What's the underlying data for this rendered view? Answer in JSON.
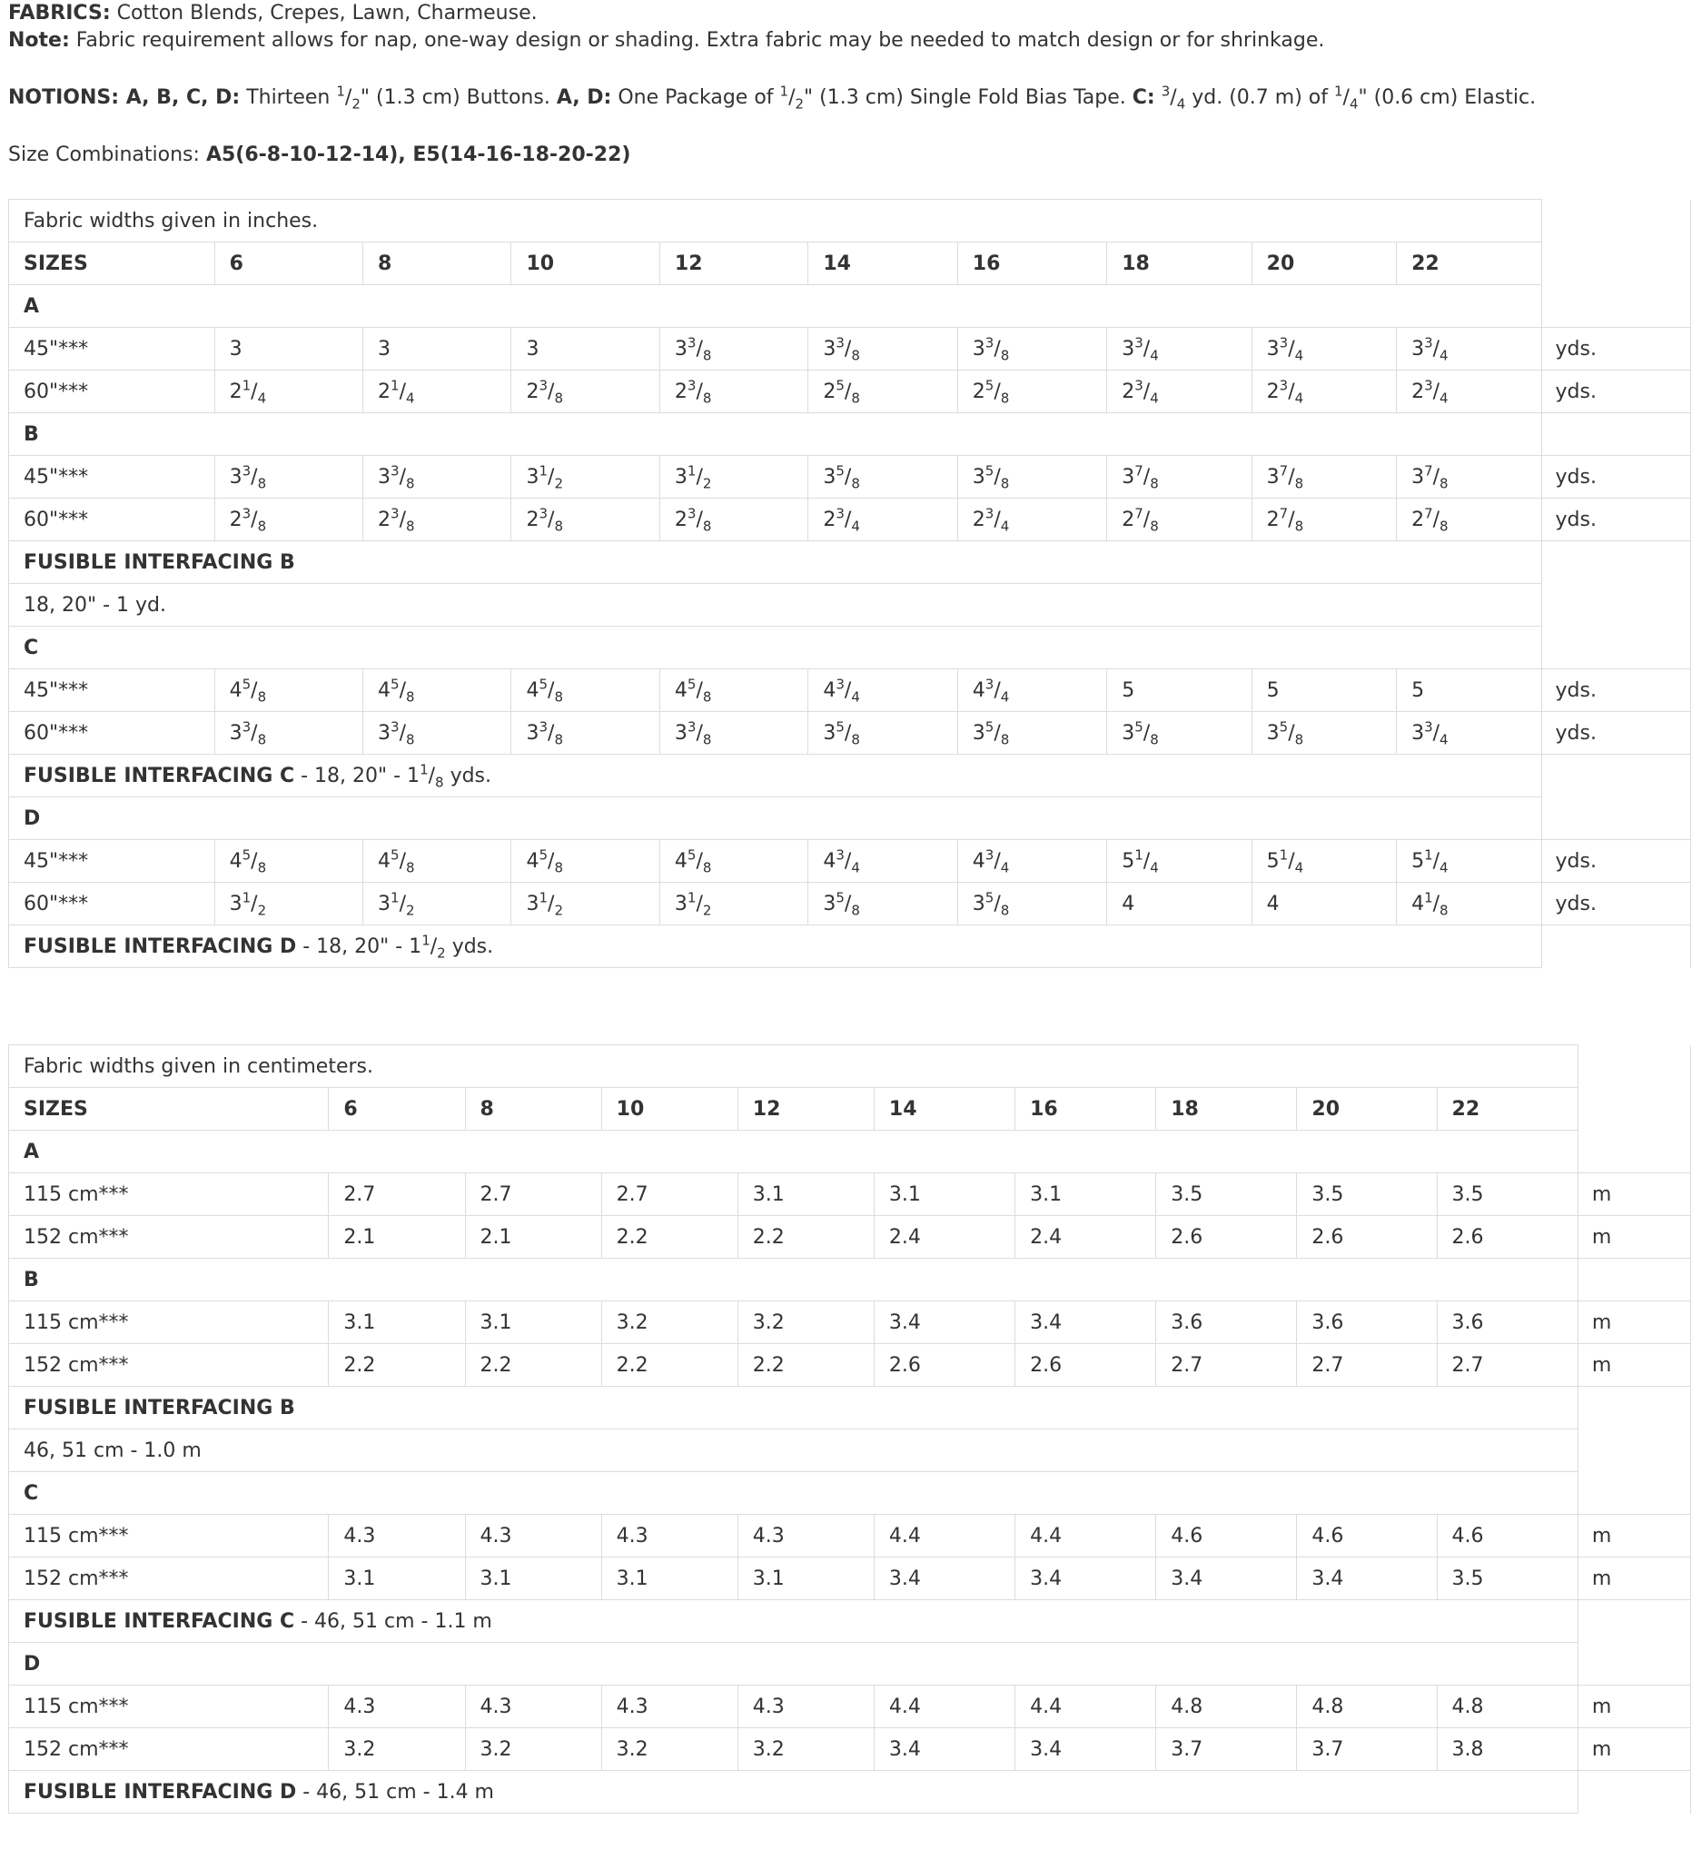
{
  "intro": {
    "fabrics_label": "FABRICS:",
    "fabrics_text": "Cotton Blends, Crepes, Lawn, Charmeuse.",
    "note_label": "Note:",
    "note_text": "Fabric requirement allows for nap, one-way design or shading. Extra fabric may be needed to match design or for shrinkage.",
    "notions_label": "NOTIONS: A, B, C, D:",
    "notions_thirteen": "Thirteen",
    "notions_half_a": "1/2",
    "notions_buttons": "\" (1.3 cm) Buttons.",
    "notions_ad_label": "A, D:",
    "notions_package": "One Package of",
    "notions_half_b": "1/2",
    "notions_bias": "\" (1.3 cm) Single Fold Bias Tape.",
    "notions_c_label": "C:",
    "notions_three_quarter": "3/4",
    "notions_yd": "yd. (0.7 m) of",
    "notions_quarter": "1/4",
    "notions_elastic": "\" (0.6 cm) Elastic.",
    "size_combo_label": "Size Combinations:",
    "size_combo_value": "A5(6-8-10-12-14), E5(14-16-18-20-22)"
  },
  "inches_table": {
    "caption": "Fabric widths given in inches.",
    "sizes_label": "SIZES",
    "sizes": [
      "6",
      "8",
      "10",
      "12",
      "14",
      "16",
      "18",
      "20",
      "22"
    ],
    "unit": "yds.",
    "A_label": "A",
    "A_rows": [
      {
        "label": "45\"***",
        "values": [
          "3",
          "3",
          "3",
          "3 3/8",
          "3 3/8",
          "3 3/8",
          "3 3/4",
          "3 3/4",
          "3 3/4"
        ]
      },
      {
        "label": "60\"***",
        "values": [
          "2 1/4",
          "2 1/4",
          "2 3/8",
          "2 3/8",
          "2 5/8",
          "2 5/8",
          "2 3/4",
          "2 3/4",
          "2 3/4"
        ]
      }
    ],
    "B_label": "B",
    "B_rows": [
      {
        "label": "45\"***",
        "values": [
          "3 3/8",
          "3 3/8",
          "3 1/2",
          "3 1/2",
          "3 5/8",
          "3 5/8",
          "3 7/8",
          "3 7/8",
          "3 7/8"
        ]
      },
      {
        "label": "60\"***",
        "values": [
          "2 3/8",
          "2 3/8",
          "2 3/8",
          "2 3/8",
          "2 3/4",
          "2 3/4",
          "2 7/8",
          "2 7/8",
          "2 7/8"
        ]
      }
    ],
    "fusible_b_label": "FUSIBLE INTERFACING B",
    "fusible_b_text": "18, 20\" - 1 yd.",
    "C_label": "C",
    "C_rows": [
      {
        "label": "45\"***",
        "values": [
          "4 5/8",
          "4 5/8",
          "4 5/8",
          "4 5/8",
          "4 3/4",
          "4 3/4",
          "5",
          "5",
          "5"
        ]
      },
      {
        "label": "60\"***",
        "values": [
          "3 3/8",
          "3 3/8",
          "3 3/8",
          "3 3/8",
          "3 5/8",
          "3 5/8",
          "3 5/8",
          "3 5/8",
          "3 3/4"
        ]
      }
    ],
    "fusible_c_label": "FUSIBLE INTERFACING C",
    "fusible_c_pre": " - 18, 20\" - 1",
    "fusible_c_frac": "1/8",
    "fusible_c_post": " yds.",
    "D_label": "D",
    "D_rows": [
      {
        "label": "45\"***",
        "values": [
          "4 5/8",
          "4 5/8",
          "4 5/8",
          "4 5/8",
          "4 3/4",
          "4 3/4",
          "5 1/4",
          "5 1/4",
          "5 1/4"
        ]
      },
      {
        "label": "60\"***",
        "values": [
          "3 1/2",
          "3 1/2",
          "3 1/2",
          "3 1/2",
          "3 5/8",
          "3 5/8",
          "4",
          "4",
          "4 1/8"
        ]
      }
    ],
    "fusible_d_label": "FUSIBLE INTERFACING D",
    "fusible_d_pre": " - 18, 20\" - 1",
    "fusible_d_frac": "1/2",
    "fusible_d_post": " yds."
  },
  "cm_table": {
    "caption": "Fabric widths given in centimeters.",
    "sizes_label": "SIZES",
    "sizes": [
      "6",
      "8",
      "10",
      "12",
      "14",
      "16",
      "18",
      "20",
      "22"
    ],
    "unit": "m",
    "A_label": "A",
    "A_rows": [
      {
        "label": "115 cm***",
        "values": [
          "2.7",
          "2.7",
          "2.7",
          "3.1",
          "3.1",
          "3.1",
          "3.5",
          "3.5",
          "3.5"
        ]
      },
      {
        "label": "152 cm***",
        "values": [
          "2.1",
          "2.1",
          "2.2",
          "2.2",
          "2.4",
          "2.4",
          "2.6",
          "2.6",
          "2.6"
        ]
      }
    ],
    "B_label": "B",
    "B_rows": [
      {
        "label": "115 cm***",
        "values": [
          "3.1",
          "3.1",
          "3.2",
          "3.2",
          "3.4",
          "3.4",
          "3.6",
          "3.6",
          "3.6"
        ]
      },
      {
        "label": "152 cm***",
        "values": [
          "2.2",
          "2.2",
          "2.2",
          "2.2",
          "2.6",
          "2.6",
          "2.7",
          "2.7",
          "2.7"
        ]
      }
    ],
    "fusible_b_label": "FUSIBLE INTERFACING B",
    "fusible_b_text": "46, 51 cm - 1.0 m",
    "C_label": "C",
    "C_rows": [
      {
        "label": "115 cm***",
        "values": [
          "4.3",
          "4.3",
          "4.3",
          "4.3",
          "4.4",
          "4.4",
          "4.6",
          "4.6",
          "4.6"
        ]
      },
      {
        "label": "152 cm***",
        "values": [
          "3.1",
          "3.1",
          "3.1",
          "3.1",
          "3.4",
          "3.4",
          "3.4",
          "3.4",
          "3.5"
        ]
      }
    ],
    "fusible_c_label": "FUSIBLE INTERFACING C",
    "fusible_c_text": " - 46, 51 cm - 1.1 m",
    "D_label": "D",
    "D_rows": [
      {
        "label": "115 cm***",
        "values": [
          "4.3",
          "4.3",
          "4.3",
          "4.3",
          "4.4",
          "4.4",
          "4.8",
          "4.8",
          "4.8"
        ]
      },
      {
        "label": "152 cm***",
        "values": [
          "3.2",
          "3.2",
          "3.2",
          "3.2",
          "3.4",
          "3.4",
          "3.7",
          "3.7",
          "3.8"
        ]
      }
    ],
    "fusible_d_label": "FUSIBLE INTERFACING D",
    "fusible_d_text": " - 46, 51 cm - 1.4 m"
  }
}
